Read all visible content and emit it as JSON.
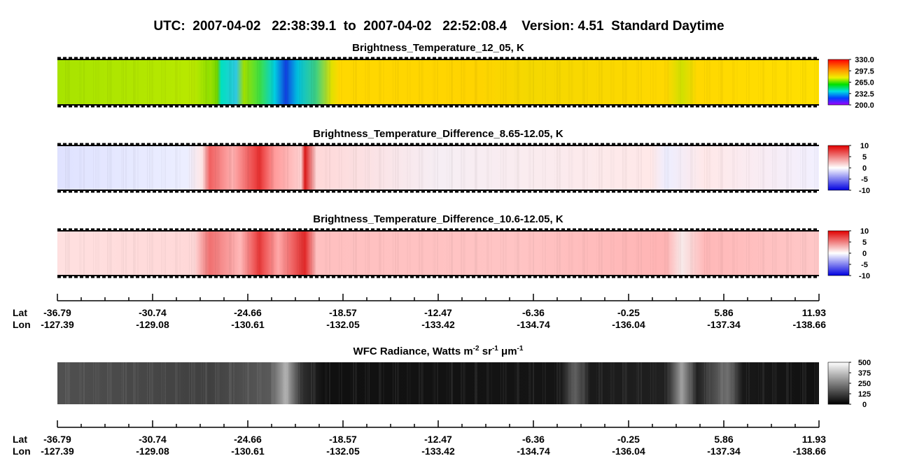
{
  "title": "UTC:  2007-04-02   22:38:39.1  to  2007-04-02   22:52:08.4    Version: 4.51  Standard Daytime",
  "panels": [
    {
      "title": "Brightness_Temperature_12_05, K",
      "colorbar": [
        "330.0",
        "297.5",
        "265.0",
        "232.5",
        "200.0"
      ]
    },
    {
      "title": "Brightness_Temperature_Difference_8.65-12.05, K",
      "colorbar": [
        "10",
        "5",
        "0",
        "-5",
        "-10"
      ]
    },
    {
      "title": "Brightness_Temperature_Difference_10.6-12.05, K",
      "colorbar": [
        "10",
        "5",
        "0",
        "-5",
        "-10"
      ]
    },
    {
      "title_parts": [
        "WFC Radiance, Watts m",
        "-2",
        " sr",
        "-1",
        " μm",
        "-1"
      ],
      "colorbar": [
        "500",
        "375",
        "250",
        "125",
        "0"
      ]
    }
  ],
  "axes": [
    {
      "lat_label": "Lat",
      "lon_label": "Lon",
      "lat": [
        "-36.79",
        "-30.74",
        "-24.66",
        "-18.57",
        "-12.47",
        "-6.36",
        "-0.25",
        "5.86",
        "11.93"
      ],
      "lon": [
        "-127.39",
        "-129.08",
        "-130.61",
        "-132.05",
        "-133.42",
        "-134.74",
        "-136.04",
        "-137.34",
        "-138.66"
      ]
    },
    {
      "lat_label": "Lat",
      "lon_label": "Lon",
      "lat": [
        "-36.79",
        "-30.74",
        "-24.66",
        "-18.57",
        "-12.47",
        "-6.36",
        "-0.25",
        "5.86",
        "11.93"
      ],
      "lon": [
        "-127.39",
        "-129.08",
        "-130.61",
        "-132.05",
        "-133.42",
        "-134.74",
        "-136.04",
        "-137.34",
        "-138.66"
      ]
    }
  ]
}
